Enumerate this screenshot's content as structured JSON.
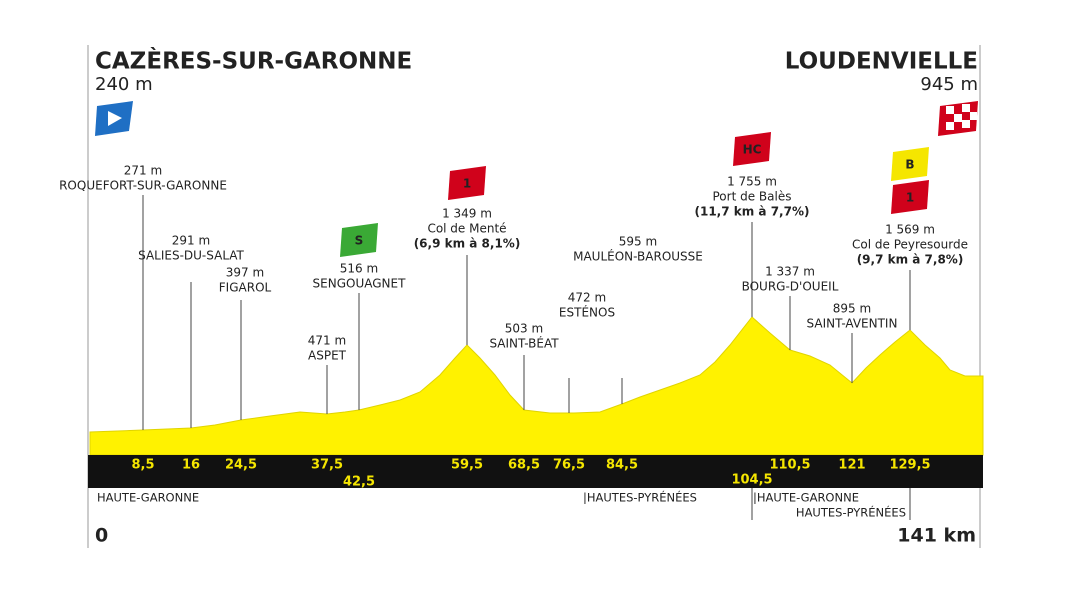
{
  "start": {
    "name": "CAZÈRES-SUR-GARONNE",
    "altitude": "240 m"
  },
  "finish": {
    "name": "LOUDENVIELLE",
    "altitude": "945 m"
  },
  "waypoints": [
    {
      "altitude": "271 m",
      "name": "ROQUEFORT-SUR-GARONNE",
      "km": "8,5"
    },
    {
      "altitude": "291 m",
      "name": "SALIES-DU-SALAT",
      "km": "16"
    },
    {
      "altitude": "397 m",
      "name": "FIGAROL",
      "km": "24,5"
    },
    {
      "altitude": "471 m",
      "name": "ASPET",
      "km": "37,5"
    },
    {
      "altitude": "516 m",
      "name": "SENGOUAGNET",
      "km": "42,5",
      "badges": [
        "S"
      ]
    },
    {
      "altitude": "1 349 m",
      "name": "Col de Menté",
      "climb": "(6,9 km à 8,1%)",
      "km": "59,5",
      "badges": [
        "1"
      ]
    },
    {
      "altitude": "503 m",
      "name": "SAINT-BÉAT",
      "km": "68,5"
    },
    {
      "altitude": "472 m",
      "name": "ESTÉNOS",
      "km": "76,5"
    },
    {
      "altitude": "595 m",
      "name": "MAULÉON-BAROUSSE",
      "km": "84,5"
    },
    {
      "altitude": "1 755 m",
      "name": "Port de Balès",
      "climb": "(11,7 km à 7,7%)",
      "km": "104,5",
      "badges": [
        "HC"
      ]
    },
    {
      "altitude": "1 337 m",
      "name": "BOURG-D'OUEIL",
      "km": "110,5"
    },
    {
      "altitude": "895 m",
      "name": "SAINT-AVENTIN",
      "km": "121"
    },
    {
      "altitude": "1 569 m",
      "name": "Col de Peyresourde",
      "climb": "(9,7 km à 7,8%)",
      "km": "129,5",
      "badges": [
        "B",
        "1"
      ]
    }
  ],
  "regions": [
    "HAUTE-GARONNE",
    "|HAUTES-PYRÉNÉES",
    "|HAUTE-GARONNE",
    "HAUTES-PYRÉNÉES"
  ],
  "distance": {
    "start": "0",
    "end": "141 km"
  }
}
